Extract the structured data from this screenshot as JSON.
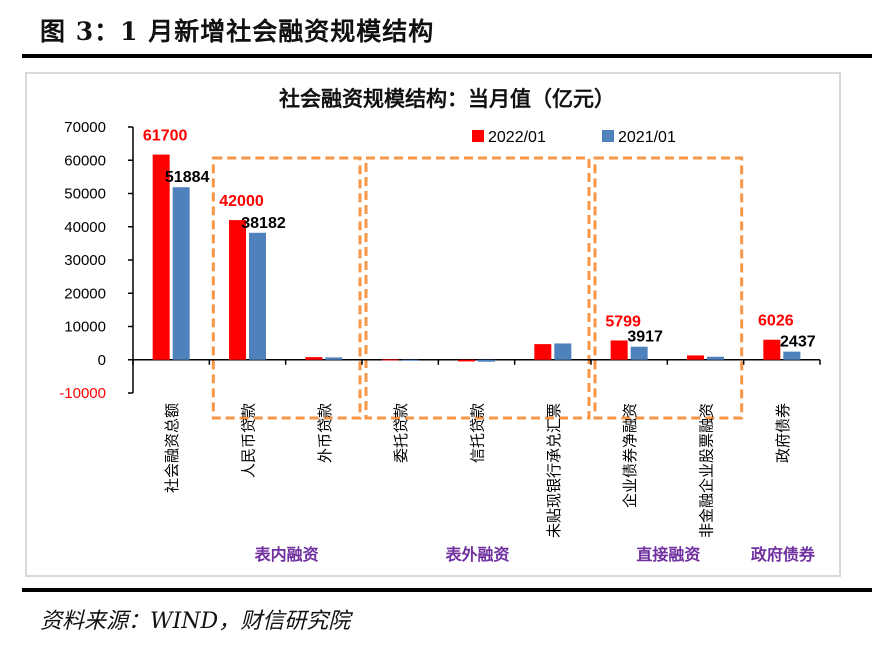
{
  "figure_title": "图 3：1 月新增社会融资规模结构",
  "source_note": "资料来源：WIND，财信研究院",
  "chart_data": {
    "type": "bar",
    "title": "社会融资规模结构：当月值（亿元）",
    "xlabel": "",
    "ylabel": "",
    "ylim": [
      -10000,
      70000
    ],
    "yticks": [
      70000,
      60000,
      50000,
      40000,
      30000,
      20000,
      10000,
      0,
      -10000
    ],
    "ytick_labels": [
      "70000",
      "60000",
      "50000",
      "40000",
      "30000",
      "20000",
      "10000",
      "0",
      "-10000"
    ],
    "legend_position": "top-right",
    "categories": [
      "社会融资总额",
      "人民币贷款",
      "外币贷款",
      "委托贷款",
      "信托贷款",
      "未贴现银行承兑汇票",
      "企业债券净融资",
      "非金融企业股票融资",
      "政府债券"
    ],
    "series": [
      {
        "name": "2022/01",
        "color": "#ff0000",
        "label_color": "#ff0000",
        "values": [
          61700,
          42000,
          800,
          100,
          -500,
          4700,
          5799,
          1300,
          6026
        ],
        "labels": [
          "61700",
          "42000",
          null,
          null,
          null,
          null,
          "5799",
          null,
          "6026"
        ]
      },
      {
        "name": "2021/01",
        "color": "#4f81bd",
        "label_color": "#000000",
        "values": [
          51884,
          38182,
          700,
          0,
          -600,
          4900,
          3917,
          900,
          2437
        ],
        "labels": [
          "51884",
          "38182",
          null,
          null,
          null,
          null,
          "3917",
          null,
          "2437"
        ]
      }
    ],
    "groups": [
      {
        "label": "表内融资",
        "categories": [
          "人民币贷款",
          "外币贷款"
        ]
      },
      {
        "label": "表外融资",
        "categories": [
          "委托贷款",
          "信托贷款",
          "未贴现银行承兑汇票"
        ]
      },
      {
        "label": "直接融资",
        "categories": [
          "企业债券净融资",
          "非金融企业股票融资"
        ]
      },
      {
        "label": "政府债券",
        "categories": [
          "政府债券"
        ]
      }
    ],
    "group_label_color": "#7030a0",
    "group_box_color": "#f79646",
    "negative_tick_color": "#ff0000",
    "grid": false
  }
}
